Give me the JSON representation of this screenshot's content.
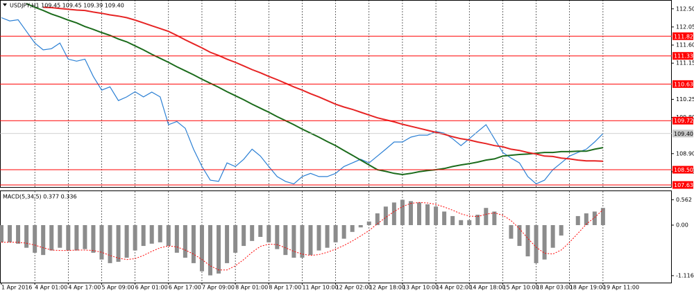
{
  "chart_data": [
    {
      "type": "line",
      "title": "USDJPY,H1 109.45 109.45 109.39 109.40",
      "categories": [
        "1 Apr 2016",
        null,
        null,
        null,
        "4 Apr 01:00",
        null,
        null,
        null,
        "4 Apr 17:00",
        null,
        null,
        null,
        "5 Apr 09:00",
        null,
        null,
        null,
        "6 Apr 01:00",
        null,
        null,
        null,
        "6 Apr 17:00",
        null,
        null,
        null,
        "7 Apr 09:00",
        null,
        null,
        null,
        "8 Apr 01:00",
        null,
        null,
        null,
        "8 Apr 17:00",
        null,
        null,
        null,
        "11 Apr 10:00",
        null,
        null,
        null,
        "12 Apr 02:00",
        null,
        null,
        null,
        "12 Apr 18:00",
        null,
        null,
        null,
        "13 Apr 10:00",
        null,
        null,
        null,
        "14 Apr 02:00",
        null,
        null,
        null,
        "14 Apr 18:00",
        null,
        null,
        null,
        "15 Apr 10:00",
        null,
        null,
        null,
        "18 Apr 03:00",
        null,
        null,
        null,
        "18 Apr 19:00",
        null,
        null,
        null,
        "19 Apr 11:00"
      ],
      "series": [
        {
          "color": "#2a7fd4",
          "values": [
            112.28,
            112.2,
            112.23,
            111.94,
            111.65,
            111.48,
            111.51,
            111.65,
            111.25,
            111.2,
            111.25,
            110.82,
            110.48,
            110.56,
            110.22,
            110.31,
            110.44,
            110.31,
            110.43,
            110.31,
            109.62,
            109.7,
            109.53,
            109.01,
            108.58,
            108.24,
            108.21,
            108.67,
            108.58,
            108.76,
            109.01,
            108.84,
            108.58,
            108.33,
            108.21,
            108.15,
            108.33,
            108.41,
            108.33,
            108.33,
            108.41,
            108.58,
            108.67,
            108.76,
            108.67,
            108.84,
            109.01,
            109.19,
            109.19,
            109.31,
            109.36,
            109.36,
            109.45,
            109.41,
            109.27,
            109.1,
            109.27,
            109.45,
            109.62,
            109.27,
            108.93,
            108.79,
            108.67,
            108.33,
            108.15,
            108.24,
            108.5,
            108.67,
            108.84,
            108.93,
            109.01,
            109.19,
            109.4
          ]
        },
        {
          "color": "#1b6b1b",
          "values": [
            null,
            null,
            null,
            112.63,
            112.54,
            112.46,
            112.37,
            112.3,
            112.22,
            112.15,
            112.06,
            111.99,
            111.91,
            111.84,
            111.75,
            111.68,
            111.58,
            111.48,
            111.37,
            111.27,
            111.17,
            111.06,
            110.96,
            110.86,
            110.75,
            110.65,
            110.55,
            110.44,
            110.34,
            110.24,
            110.13,
            110.03,
            109.93,
            109.82,
            109.72,
            109.62,
            109.51,
            109.41,
            109.31,
            109.2,
            109.1,
            108.98,
            108.86,
            108.74,
            108.62,
            108.5,
            108.46,
            108.41,
            108.38,
            108.41,
            108.45,
            108.48,
            108.5,
            108.53,
            108.58,
            108.62,
            108.65,
            108.69,
            108.74,
            108.77,
            108.84,
            108.86,
            108.88,
            108.89,
            108.91,
            108.93,
            108.93,
            108.95,
            108.95,
            108.96,
            108.96,
            109.01,
            109.05
          ]
        },
        {
          "color": "#e62424",
          "values": [
            null,
            null,
            null,
            null,
            null,
            112.54,
            112.53,
            112.51,
            112.49,
            112.47,
            112.46,
            112.42,
            112.39,
            112.35,
            112.32,
            112.28,
            112.22,
            112.15,
            112.08,
            112.01,
            111.94,
            111.84,
            111.73,
            111.63,
            111.53,
            111.42,
            111.34,
            111.25,
            111.17,
            111.08,
            110.99,
            110.91,
            110.82,
            110.74,
            110.65,
            110.56,
            110.48,
            110.39,
            110.31,
            110.22,
            110.13,
            110.06,
            110.0,
            109.93,
            109.86,
            109.79,
            109.74,
            109.69,
            109.63,
            109.58,
            109.53,
            109.48,
            109.43,
            109.38,
            109.32,
            109.27,
            109.24,
            109.19,
            109.15,
            109.1,
            109.07,
            109.01,
            108.98,
            108.93,
            108.89,
            108.84,
            108.83,
            108.79,
            108.77,
            108.74,
            108.72,
            108.72,
            108.71
          ]
        }
      ],
      "levels": [
        111.82,
        111.33,
        110.63,
        109.72,
        {
          "value": 108.5,
          "label": "108.50"
        },
        107.63
      ],
      "level_color": "#ff0000",
      "last_price": {
        "value": 109.4,
        "label": "109.40"
      },
      "ylim": [
        108.07,
        112.72
      ],
      "yticks": [
        {
          "value": 112.5,
          "label": "112.50"
        },
        112.05,
        {
          "value": 111.6,
          "label": "111.60"
        },
        111.15,
        110.25,
        {
          "value": 109.8,
          "label": "109.80"
        },
        {
          "value": 108.9,
          "label": "108.90"
        },
        108.45
      ],
      "grid": true
    },
    {
      "type": "macd",
      "title": "MACD(5,34,5) 0.377 0.336",
      "series": [
        {
          "color": "#8c8c8c",
          "values": [
            -0.38,
            -0.38,
            -0.41,
            -0.5,
            -0.61,
            -0.66,
            -0.56,
            -0.5,
            -0.56,
            -0.56,
            -0.53,
            -0.61,
            -0.76,
            -0.84,
            -0.81,
            -0.72,
            -0.56,
            -0.46,
            -0.41,
            -0.38,
            -0.46,
            -0.61,
            -0.72,
            -0.84,
            -1.02,
            -1.11,
            -1.07,
            -0.84,
            -0.61,
            -0.46,
            -0.35,
            -0.26,
            -0.38,
            -0.53,
            -0.66,
            -0.72,
            -0.72,
            -0.66,
            -0.56,
            -0.5,
            -0.38,
            -0.3,
            -0.15,
            -0.05,
            0.08,
            0.26,
            0.41,
            0.5,
            0.56,
            0.53,
            0.5,
            0.46,
            0.41,
            0.3,
            0.2,
            0.11,
            0.11,
            0.23,
            0.38,
            0.3,
            0,
            -0.3,
            -0.46,
            -0.69,
            -0.84,
            -0.76,
            -0.5,
            -0.23,
            0,
            0.2,
            0.26,
            0.3,
            0.38
          ]
        },
        {
          "color": "#ff0000",
          "values": [
            -0.38,
            -0.38,
            -0.38,
            -0.4,
            -0.44,
            -0.5,
            -0.55,
            -0.56,
            -0.56,
            -0.55,
            -0.55,
            -0.56,
            -0.6,
            -0.67,
            -0.73,
            -0.76,
            -0.74,
            -0.67,
            -0.58,
            -0.5,
            -0.46,
            -0.48,
            -0.55,
            -0.64,
            -0.76,
            -0.9,
            -0.99,
            -0.99,
            -0.9,
            -0.76,
            -0.6,
            -0.47,
            -0.42,
            -0.43,
            -0.5,
            -0.58,
            -0.64,
            -0.67,
            -0.65,
            -0.6,
            -0.53,
            -0.45,
            -0.35,
            -0.24,
            -0.12,
            0.03,
            0.17,
            0.3,
            0.41,
            0.48,
            0.5,
            0.49,
            0.46,
            0.4,
            0.33,
            0.25,
            0.2,
            0.19,
            0.24,
            0.27,
            0.22,
            0.1,
            -0.08,
            -0.29,
            -0.49,
            -0.62,
            -0.64,
            -0.55,
            -0.38,
            -0.18,
            0.02,
            0.17,
            0.34
          ]
        }
      ],
      "ylim": [
        -1.27,
        0.75
      ],
      "yticks": [
        0.562,
        {
          "value": 0,
          "label": "0.00"
        },
        -1.116
      ]
    }
  ]
}
